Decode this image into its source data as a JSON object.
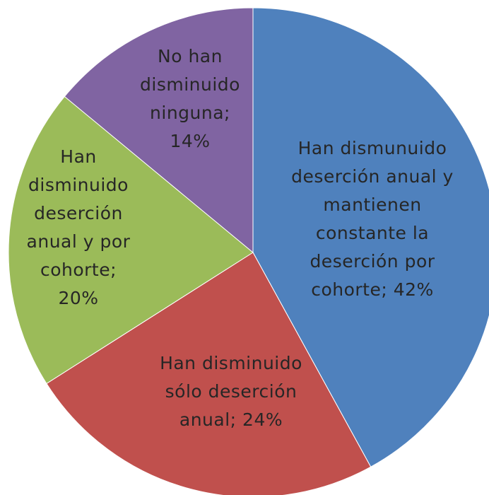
{
  "chart_data": {
    "type": "pie",
    "slices": [
      {
        "label_lines": [
          "Han dismunuido",
          "deserción anual y",
          "mantienen",
          "constante la",
          "deserción por",
          "cohorte; 42%"
        ],
        "value": 42,
        "color": "#4f81bd"
      },
      {
        "label_lines": [
          "Han disminuido",
          "sólo deserción",
          "anual; 24%"
        ],
        "value": 24,
        "color": "#c0504d"
      },
      {
        "label_lines": [
          "Han",
          "disminuido",
          "deserción",
          "anual y por",
          "cohorte;",
          "20%"
        ],
        "value": 20,
        "color": "#9bbb59"
      },
      {
        "label_lines": [
          "No han",
          "disminuido",
          "ninguna;",
          "14%"
        ],
        "value": 14,
        "color": "#8064a2"
      }
    ]
  }
}
